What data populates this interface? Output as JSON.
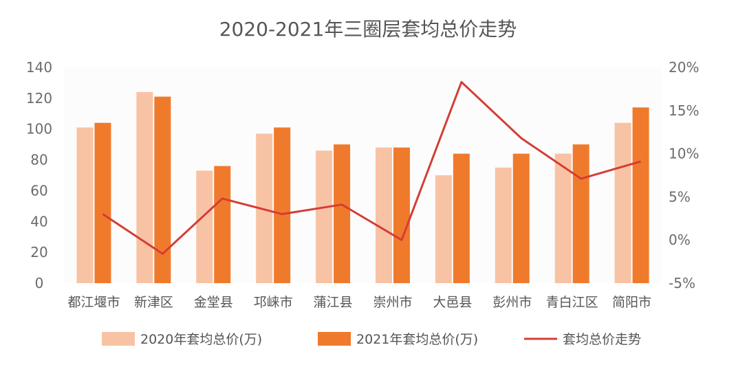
{
  "chart_data": {
    "type": "bar",
    "title": "2020-2021年三圈层套均总价走势",
    "categories": [
      "都江堰市",
      "新津区",
      "金堂县",
      "邛崃市",
      "蒲江县",
      "崇州市",
      "大邑县",
      "彭州市",
      "青白江区",
      "简阳市"
    ],
    "series": [
      {
        "name": "2020年套均总价(万)",
        "type": "bar",
        "axis": "left",
        "color": "#f8c3a4",
        "values": [
          101,
          124,
          73,
          97,
          86,
          88,
          70,
          75,
          84,
          104
        ]
      },
      {
        "name": "2021年套均总价(万)",
        "type": "bar",
        "axis": "left",
        "color": "#f07a2c",
        "values": [
          104,
          121,
          76,
          101,
          90,
          88,
          84,
          84,
          90,
          114
        ]
      },
      {
        "name": "套均总价走势",
        "type": "line",
        "axis": "right",
        "color": "#d43d36",
        "values": [
          3.0,
          -1.6,
          4.8,
          3.0,
          4.1,
          0.0,
          18.3,
          11.8,
          7.1,
          9.1
        ]
      }
    ],
    "y_left": {
      "min": 0,
      "max": 140,
      "ticks": [
        "0",
        "20",
        "40",
        "60",
        "80",
        "100",
        "120",
        "140"
      ]
    },
    "y_right": {
      "min": -5,
      "max": 20,
      "ticks": [
        "-5%",
        "0%",
        "5%",
        "10%",
        "15%",
        "20%"
      ]
    },
    "legend_position": "bottom",
    "grid": false
  }
}
